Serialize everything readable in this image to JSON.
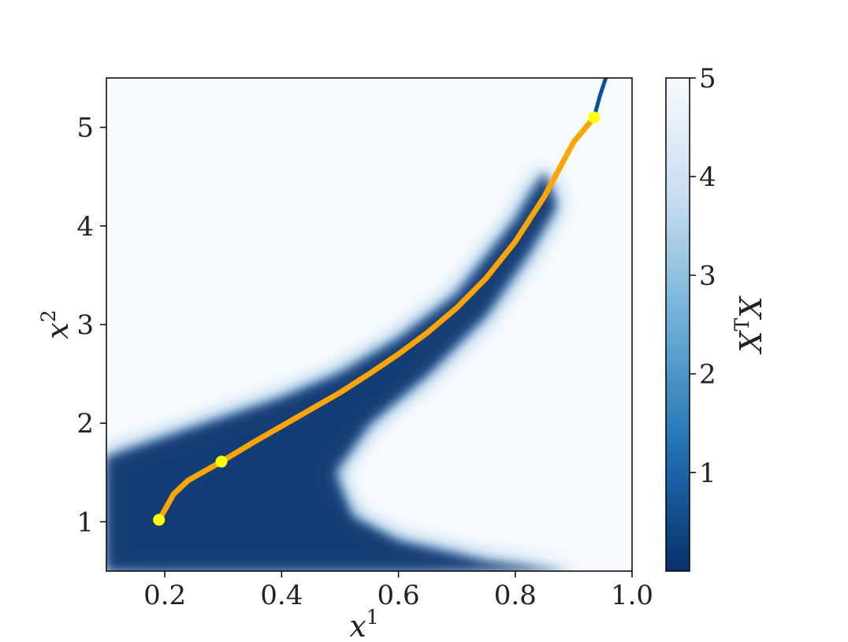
{
  "chart_data": {
    "type": "heatmap",
    "title": "",
    "xlabel": "x",
    "xlabel_sup": "1",
    "ylabel": "x",
    "ylabel_sup": "2",
    "xlim": [
      0.1,
      1.0
    ],
    "ylim": [
      0.5,
      5.5
    ],
    "xticks": [
      0.2,
      0.4,
      0.6,
      0.8,
      1.0
    ],
    "xtick_labels": [
      "0.2",
      "0.4",
      "0.6",
      "0.8",
      "1.0"
    ],
    "yticks": [
      1,
      2,
      3,
      4,
      5
    ],
    "ytick_labels": [
      "1",
      "2",
      "3",
      "4",
      "5"
    ],
    "colormap": "Blues_r",
    "color_dark": "#08306b",
    "color_mid": "#2171b5",
    "color_light": "#f7fbff",
    "colorbar": {
      "label": "X",
      "label_sup": "T",
      "label_tail": "X",
      "range": [
        0.0,
        5.0
      ],
      "ticks": [
        1,
        2,
        3,
        4,
        5
      ],
      "tick_labels": [
        "1",
        "2",
        "3",
        "4",
        "5"
      ]
    },
    "low_value_region": {
      "upper_boundary": [
        {
          "x": 0.1,
          "y": 1.65
        },
        {
          "x": 0.2,
          "y": 1.85
        },
        {
          "x": 0.3,
          "y": 2.05
        },
        {
          "x": 0.4,
          "y": 2.25
        },
        {
          "x": 0.5,
          "y": 2.5
        },
        {
          "x": 0.6,
          "y": 2.85
        },
        {
          "x": 0.7,
          "y": 3.3
        },
        {
          "x": 0.8,
          "y": 4.05
        },
        {
          "x": 0.85,
          "y": 4.55
        }
      ],
      "lower_boundary": [
        {
          "x": 0.9,
          "y": 0.5
        },
        {
          "x": 0.75,
          "y": 0.6
        },
        {
          "x": 0.6,
          "y": 0.8
        },
        {
          "x": 0.52,
          "y": 1.05
        },
        {
          "x": 0.49,
          "y": 1.5
        },
        {
          "x": 0.55,
          "y": 2.0
        },
        {
          "x": 0.65,
          "y": 2.5
        },
        {
          "x": 0.75,
          "y": 3.1
        },
        {
          "x": 0.82,
          "y": 3.7
        },
        {
          "x": 0.87,
          "y": 4.2
        }
      ]
    },
    "series": [
      {
        "type": "line",
        "color": "#ffa500",
        "x": [
          0.19,
          0.2,
          0.215,
          0.24,
          0.27,
          0.297,
          0.35,
          0.4,
          0.45,
          0.5,
          0.55,
          0.6,
          0.65,
          0.7,
          0.75,
          0.8,
          0.85,
          0.9,
          0.935
        ],
        "y": [
          1.02,
          1.12,
          1.28,
          1.42,
          1.52,
          1.61,
          1.8,
          1.97,
          2.14,
          2.31,
          2.5,
          2.7,
          2.92,
          3.17,
          3.47,
          3.84,
          4.3,
          4.85,
          5.1
        ]
      },
      {
        "type": "line",
        "color": "#08519c",
        "x": [
          0.935,
          0.945,
          0.955
        ],
        "y": [
          5.1,
          5.32,
          5.5
        ]
      },
      {
        "type": "scatter",
        "color": "#ffff00",
        "x": [
          0.19,
          0.297,
          0.935
        ],
        "y": [
          1.02,
          1.61,
          5.1
        ]
      }
    ]
  }
}
